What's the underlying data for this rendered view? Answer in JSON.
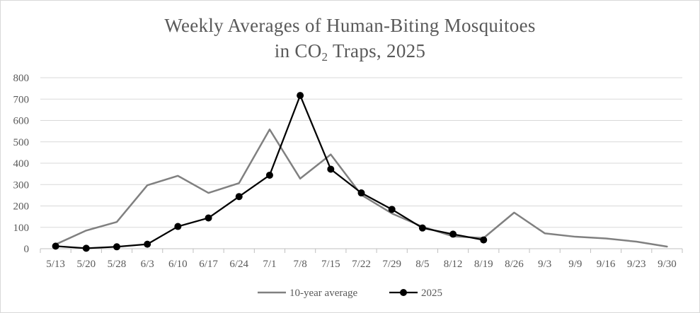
{
  "chart_data": {
    "type": "line",
    "title_line1": "Weekly Averages of Human-Biting Mosquitoes",
    "title_line2_pre": "in CO",
    "title_line2_sub": "2",
    "title_line2_post": " Traps, 2025",
    "categories": [
      "5/13",
      "5/20",
      "5/28",
      "6/3",
      "6/10",
      "6/17",
      "6/24",
      "7/1",
      "7/8",
      "7/15",
      "7/22",
      "7/29",
      "8/5",
      "8/12",
      "8/19",
      "8/26",
      "9/3",
      "9/9",
      "9/16",
      "9/23",
      "9/30"
    ],
    "ylim": [
      0,
      800
    ],
    "yticks": [
      0,
      100,
      200,
      300,
      400,
      500,
      600,
      700,
      800
    ],
    "grid": true,
    "legend_position": "bottom",
    "series": [
      {
        "name": "10-year average",
        "color": "#808080",
        "markers": false,
        "values": [
          20,
          85,
          125,
          297,
          341,
          261,
          307,
          558,
          328,
          441,
          252,
          165,
          103,
          58,
          50,
          169,
          72,
          56,
          48,
          33,
          10
        ]
      },
      {
        "name": "2025",
        "color": "#000000",
        "markers": true,
        "values": [
          12,
          2,
          9,
          21,
          104,
          144,
          244,
          344,
          717,
          372,
          261,
          184,
          97,
          68,
          41,
          null,
          null,
          null,
          null,
          null,
          null
        ]
      }
    ]
  }
}
